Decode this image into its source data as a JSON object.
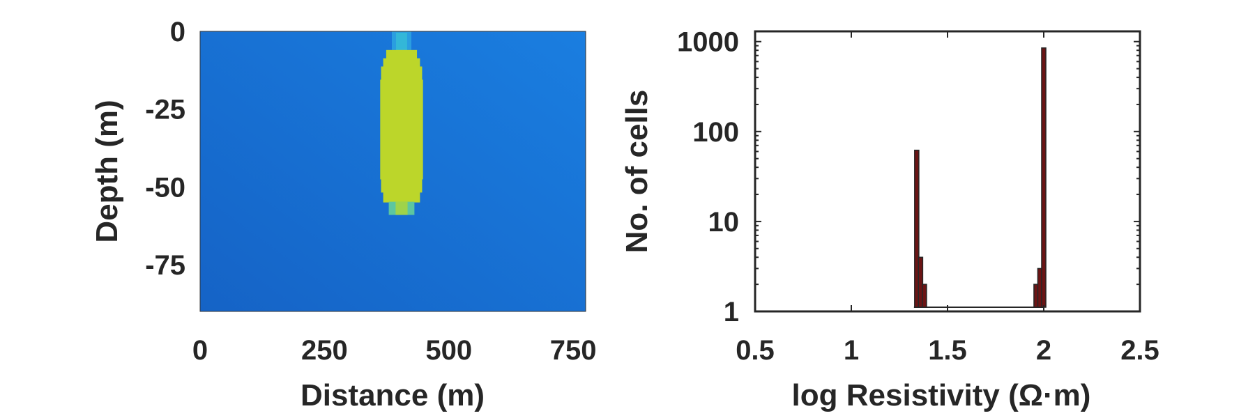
{
  "chart_data": [
    {
      "type": "heatmap",
      "xlabel": "Distance (m)",
      "ylabel": "Depth (m)",
      "xlim": [
        0,
        775
      ],
      "ylim": [
        -90,
        0
      ],
      "xticks": [
        0,
        250,
        500,
        750
      ],
      "yticks": [
        0,
        -25,
        -50,
        -75
      ],
      "xtick_labels": [
        "0",
        "250",
        "500",
        "750"
      ],
      "ytick_labels": [
        "0",
        "-25",
        "-50",
        "-75"
      ],
      "background_color": "#1a70d0",
      "anomaly_color": "#bcd62a",
      "anomaly": {
        "description_values": "high-resistivity body",
        "x_range": [
          362,
          448
        ],
        "depth_range": [
          -59,
          -6
        ]
      }
    },
    {
      "type": "bar",
      "xlabel": "log Resistivity (Ω·m)",
      "ylabel": "No. of cells",
      "xlim": [
        0.5,
        2.5
      ],
      "ylim": [
        1,
        1300
      ],
      "yscale": "log",
      "xticks": [
        0.5,
        1,
        1.5,
        2,
        2.5
      ],
      "yticks": [
        1,
        10,
        100,
        1000
      ],
      "xtick_labels": [
        "0.5",
        "1",
        "1.5",
        "2",
        "2.5"
      ],
      "ytick_labels": [
        "1",
        "10",
        "100",
        "1000"
      ],
      "bar_color": "#6b1414",
      "bars": [
        {
          "x": 1.34,
          "count": 62
        },
        {
          "x": 1.36,
          "count": 4
        },
        {
          "x": 1.38,
          "count": 2
        },
        {
          "x": 1.96,
          "count": 2
        },
        {
          "x": 1.98,
          "count": 3
        },
        {
          "x": 2.0,
          "count": 850
        }
      ],
      "bar_width": 0.022
    }
  ]
}
